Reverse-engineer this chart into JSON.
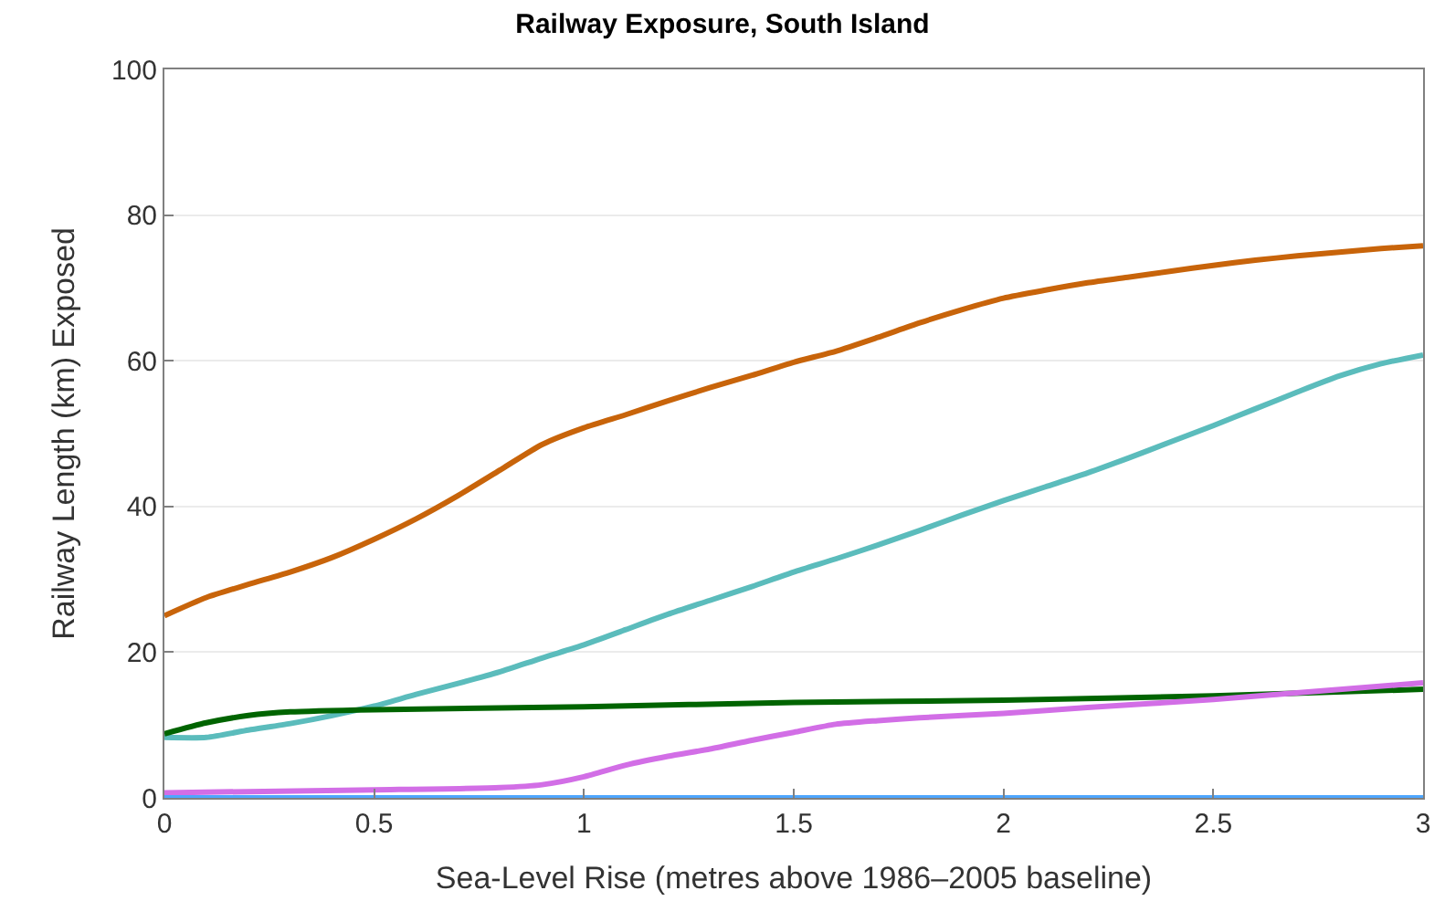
{
  "chart_data": {
    "type": "line",
    "title": "Railway Exposure, South Island",
    "xlabel": "Sea-Level Rise (metres above 1986–2005 baseline)",
    "ylabel": "Railway Length (km) Exposed",
    "xlim": [
      0,
      3
    ],
    "ylim": [
      0,
      100
    ],
    "xticks": [
      0,
      0.5,
      1,
      1.5,
      2,
      2.5,
      3
    ],
    "yticks": [
      0,
      20,
      40,
      60,
      80,
      100
    ],
    "grid": "y",
    "line_style": "solid",
    "marker": "none",
    "series": [
      {
        "color": "#c8640a",
        "x": [
          0,
          0.1,
          0.2,
          0.3,
          0.4,
          0.5,
          0.6,
          0.7,
          0.8,
          0.9,
          1.0,
          1.1,
          1.2,
          1.3,
          1.4,
          1.5,
          1.6,
          1.7,
          1.8,
          1.9,
          2.0,
          2.1,
          2.2,
          2.3,
          2.4,
          2.5,
          2.6,
          2.7,
          2.8,
          2.9,
          3.0
        ],
        "values": [
          25,
          27.5,
          29.3,
          31,
          33,
          35.5,
          38.3,
          41.5,
          45,
          48.5,
          50.8,
          52.6,
          54.5,
          56.3,
          58,
          59.8,
          61.3,
          63.2,
          65.2,
          67,
          68.6,
          69.7,
          70.7,
          71.5,
          72.3,
          73.1,
          73.8,
          74.4,
          74.9,
          75.4,
          75.8
        ]
      },
      {
        "color": "#5bbcbc",
        "x": [
          0,
          0.1,
          0.2,
          0.3,
          0.4,
          0.5,
          0.6,
          0.7,
          0.8,
          0.9,
          1.0,
          1.1,
          1.2,
          1.3,
          1.4,
          1.5,
          1.6,
          1.7,
          1.8,
          1.9,
          2.0,
          2.1,
          2.2,
          2.3,
          2.4,
          2.5,
          2.6,
          2.7,
          2.8,
          2.9,
          3.0
        ],
        "values": [
          8.3,
          8.3,
          9.3,
          10.2,
          11.3,
          12.6,
          14.2,
          15.7,
          17.3,
          19.2,
          21,
          23.1,
          25.2,
          27.1,
          29,
          31,
          32.8,
          34.7,
          36.7,
          38.8,
          40.8,
          42.7,
          44.6,
          46.7,
          48.9,
          51.1,
          53.4,
          55.7,
          57.9,
          59.6,
          60.8
        ]
      },
      {
        "color": "#006400",
        "x": [
          0,
          0.1,
          0.2,
          0.3,
          0.5,
          1.0,
          1.5,
          2.0,
          2.5,
          3.0
        ],
        "values": [
          8.8,
          10.3,
          11.3,
          11.8,
          12.1,
          12.5,
          13.1,
          13.4,
          14.0,
          14.9
        ]
      },
      {
        "color": "#d26ee6",
        "x": [
          0,
          0.5,
          0.8,
          0.9,
          1.0,
          1.1,
          1.2,
          1.3,
          1.4,
          1.5,
          1.6,
          1.7,
          1.8,
          2.0,
          2.2,
          2.5,
          3.0
        ],
        "values": [
          0.7,
          1.1,
          1.4,
          1.8,
          2.9,
          4.5,
          5.7,
          6.7,
          7.9,
          9.0,
          10.1,
          10.6,
          11.0,
          11.6,
          12.4,
          13.5,
          15.8
        ]
      },
      {
        "color": "#4da6ff",
        "x": [
          0,
          3
        ],
        "values": [
          0,
          0
        ]
      }
    ]
  }
}
